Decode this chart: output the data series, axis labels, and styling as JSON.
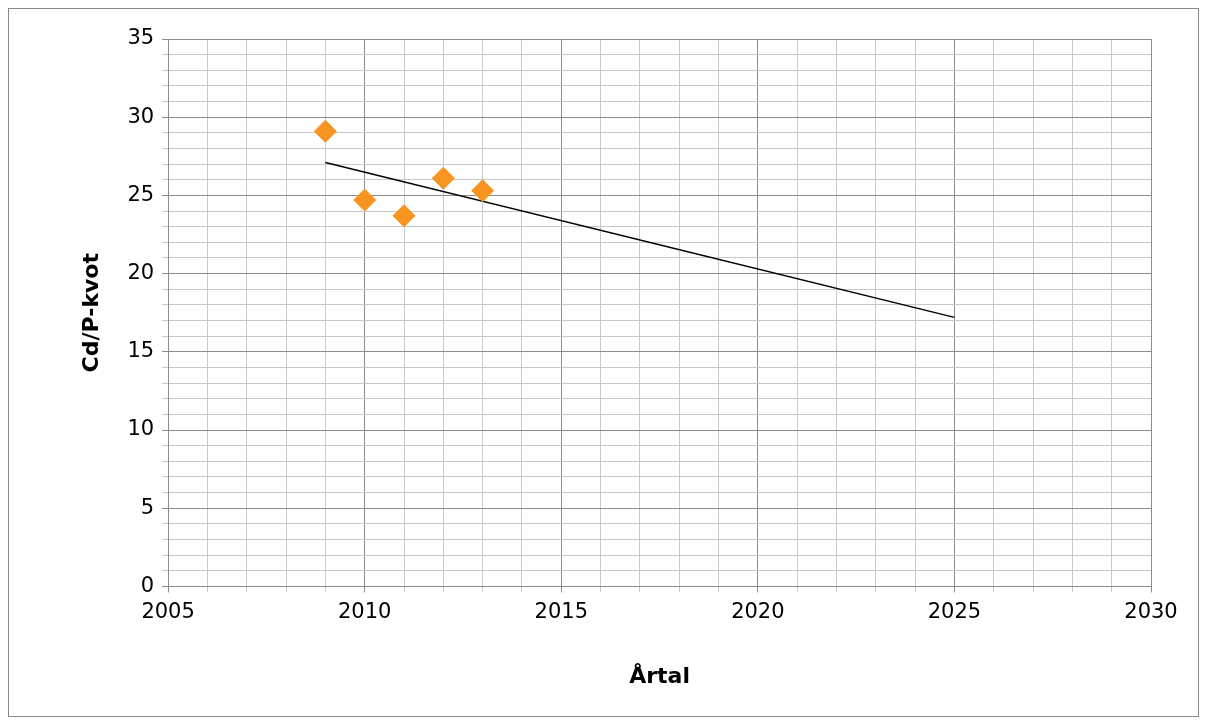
{
  "chart_data": {
    "type": "scatter",
    "xlabel": "Årtal",
    "ylabel": "Cd/P-kvot",
    "xlim": [
      2005,
      2030
    ],
    "xticks": [
      2005,
      {
        "value": 2006,
        "label": null
      },
      {
        "value": 2007,
        "label": null
      },
      {
        "value": 2008,
        "label": null
      },
      {
        "value": 2009,
        "label": null
      },
      2010,
      {
        "value": 2011,
        "label": null
      },
      {
        "value": 2012,
        "label": null
      },
      {
        "value": 2013,
        "label": null
      },
      {
        "value": 2014,
        "label": null
      },
      2015,
      {
        "value": 2016,
        "label": null
      },
      {
        "value": 2017,
        "label": null
      },
      {
        "value": 2018,
        "label": null
      },
      {
        "value": 2019,
        "label": null
      },
      2020,
      {
        "value": 2021,
        "label": null
      },
      {
        "value": 2022,
        "label": null
      },
      {
        "value": 2023,
        "label": null
      },
      {
        "value": 2024,
        "label": null
      },
      2025,
      {
        "value": 2026,
        "label": null
      },
      {
        "value": 2027,
        "label": null
      },
      {
        "value": 2028,
        "label": null
      },
      {
        "value": 2029,
        "label": null
      },
      2030
    ],
    "ylim": [
      0,
      35
    ],
    "yticks": [
      0,
      {
        "value": 1,
        "label": null
      },
      {
        "value": 2,
        "label": null
      },
      {
        "value": 3,
        "label": null
      },
      {
        "value": 4,
        "label": null
      },
      5,
      {
        "value": 6,
        "label": null
      },
      {
        "value": 7,
        "label": null
      },
      {
        "value": 8,
        "label": null
      },
      {
        "value": 9,
        "label": null
      },
      10,
      {
        "value": 11,
        "label": null
      },
      {
        "value": 12,
        "label": null
      },
      {
        "value": 13,
        "label": null
      },
      {
        "value": 14,
        "label": null
      },
      15,
      {
        "value": 16,
        "label": null
      },
      {
        "value": 17,
        "label": null
      },
      {
        "value": 18,
        "label": null
      },
      {
        "value": 19,
        "label": null
      },
      20,
      {
        "value": 21,
        "label": null
      },
      {
        "value": 22,
        "label": null
      },
      {
        "value": 23,
        "label": null
      },
      {
        "value": 24,
        "label": null
      },
      25,
      {
        "value": 26,
        "label": null
      },
      {
        "value": 27,
        "label": null
      },
      {
        "value": 28,
        "label": null
      },
      {
        "value": 29,
        "label": null
      },
      30,
      {
        "value": 31,
        "label": null
      },
      {
        "value": 32,
        "label": null
      },
      {
        "value": 33,
        "label": null
      },
      {
        "value": 34,
        "label": null
      },
      35
    ],
    "grid": true,
    "series": [
      {
        "type": "scatter",
        "color": "#f79520",
        "marker": "diamond",
        "x": [
          2009,
          2010,
          2011,
          2012,
          2013
        ],
        "values": [
          29.1,
          24.7,
          23.7,
          26.1,
          25.3
        ]
      },
      {
        "type": "line",
        "color": "#000000",
        "marker": "none",
        "x": [
          2009,
          2025
        ],
        "values": [
          27.1,
          17.2
        ]
      }
    ]
  }
}
